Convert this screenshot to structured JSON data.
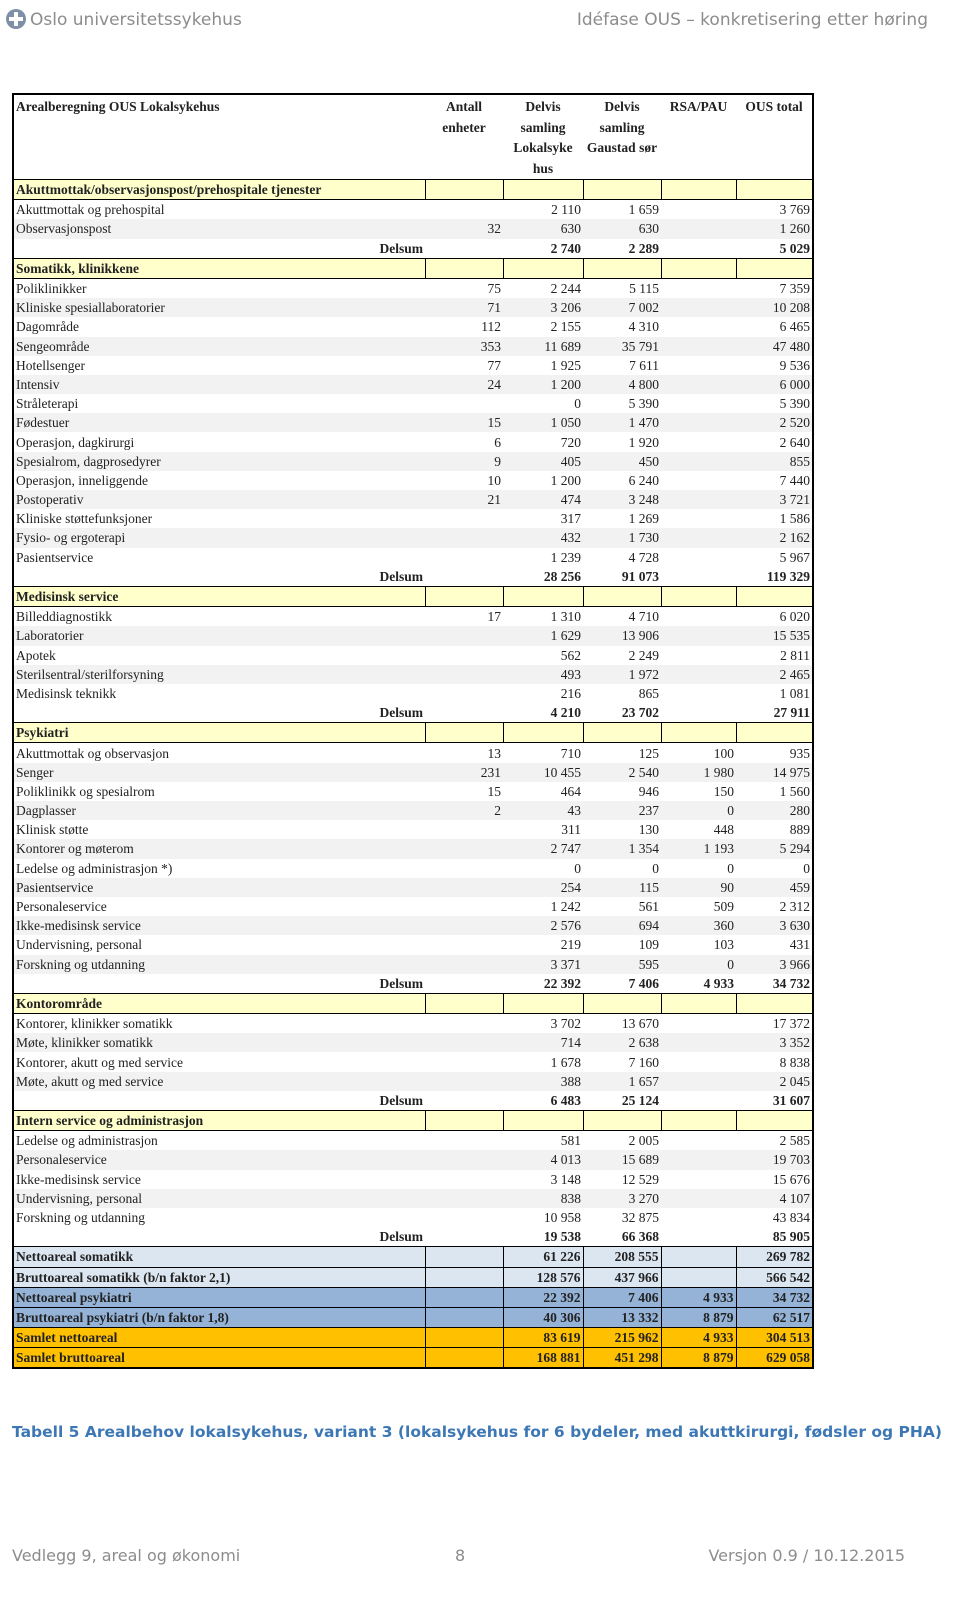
{
  "header": {
    "organization": "Oslo universitetssykehus",
    "document_title": "Idéfase OUS – konkretisering etter høring"
  },
  "table": {
    "header": [
      "Arealberegning OUS Lokalsykehus",
      "Antall enheter",
      "Delvis samling Lokalsyke hus",
      "Delvis samling Gaustad sør",
      "RSA/PAU",
      "OUS total"
    ],
    "sections": [
      {
        "title": "Akuttmottak/observasjonspost/prehospitale tjenester",
        "rows": [
          [
            "Akuttmottak og prehospital",
            null,
            "2 110",
            "1 659",
            null,
            "3 769"
          ],
          [
            "Observasjonspost",
            "32",
            "630",
            "630",
            null,
            "1 260"
          ]
        ],
        "delsum": [
          "Delsum",
          null,
          "2 740",
          "2 289",
          null,
          "5 029"
        ]
      },
      {
        "title": "Somatikk, klinikkene",
        "rows": [
          [
            "Poliklinikker",
            "75",
            "2 244",
            "5 115",
            null,
            "7 359"
          ],
          [
            "Kliniske spesiallaboratorier",
            "71",
            "3 206",
            "7 002",
            null,
            "10 208"
          ],
          [
            "Dagområde",
            "112",
            "2 155",
            "4 310",
            null,
            "6 465"
          ],
          [
            "Sengeområde",
            "353",
            "11 689",
            "35 791",
            null,
            "47 480"
          ],
          [
            "Hotellsenger",
            "77",
            "1 925",
            "7 611",
            null,
            "9 536"
          ],
          [
            "Intensiv",
            "24",
            "1 200",
            "4 800",
            null,
            "6 000"
          ],
          [
            "Stråleterapi",
            null,
            "0",
            "5 390",
            null,
            "5 390"
          ],
          [
            "Fødestuer",
            "15",
            "1 050",
            "1 470",
            null,
            "2 520"
          ],
          [
            "Operasjon, dagkirurgi",
            "6",
            "720",
            "1 920",
            null,
            "2 640"
          ],
          [
            "Spesialrom, dagprosedyrer",
            "9",
            "405",
            "450",
            null,
            "855"
          ],
          [
            "Operasjon, inneliggende",
            "10",
            "1 200",
            "6 240",
            null,
            "7 440"
          ],
          [
            "Postoperativ",
            "21",
            "474",
            "3 248",
            null,
            "3 721"
          ],
          [
            "Kliniske støttefunksjoner",
            null,
            "317",
            "1 269",
            null,
            "1 586"
          ],
          [
            "Fysio- og ergoterapi",
            null,
            "432",
            "1 730",
            null,
            "2 162"
          ],
          [
            "Pasientservice",
            null,
            "1 239",
            "4 728",
            null,
            "5 967"
          ]
        ],
        "delsum": [
          "Delsum",
          null,
          "28 256",
          "91 073",
          null,
          "119 329"
        ]
      },
      {
        "title": "Medisinsk service",
        "rows": [
          [
            "Billeddiagnostikk",
            "17",
            "1 310",
            "4 710",
            null,
            "6 020"
          ],
          [
            "Laboratorier",
            null,
            "1 629",
            "13 906",
            null,
            "15 535"
          ],
          [
            "Apotek",
            null,
            "562",
            "2 249",
            null,
            "2 811"
          ],
          [
            "Sterilsentral/sterilforsyning",
            null,
            "493",
            "1 972",
            null,
            "2 465"
          ],
          [
            "Medisinsk teknikk",
            null,
            "216",
            "865",
            null,
            "1 081"
          ]
        ],
        "delsum": [
          "Delsum",
          null,
          "4 210",
          "23 702",
          null,
          "27 911"
        ]
      },
      {
        "title": "Psykiatri",
        "rows": [
          [
            "Akuttmottak og observasjon",
            "13",
            "710",
            "125",
            "100",
            "935"
          ],
          [
            "Senger",
            "231",
            "10 455",
            "2 540",
            "1 980",
            "14 975"
          ],
          [
            "Poliklinikk og spesialrom",
            "15",
            "464",
            "946",
            "150",
            "1 560"
          ],
          [
            "Dagplasser",
            "2",
            "43",
            "237",
            "0",
            "280"
          ],
          [
            "Klinisk støtte",
            null,
            "311",
            "130",
            "448",
            "889"
          ],
          [
            "Kontorer og møterom",
            null,
            "2 747",
            "1 354",
            "1 193",
            "5 294"
          ],
          [
            "Ledelse og administrasjon *)",
            null,
            "0",
            "0",
            "0",
            "0"
          ],
          [
            "Pasientservice",
            null,
            "254",
            "115",
            "90",
            "459"
          ],
          [
            "Personaleservice",
            null,
            "1 242",
            "561",
            "509",
            "2 312"
          ],
          [
            "Ikke-medisinsk service",
            null,
            "2 576",
            "694",
            "360",
            "3 630"
          ],
          [
            "Undervisning, personal",
            null,
            "219",
            "109",
            "103",
            "431"
          ],
          [
            "Forskning og utdanning",
            null,
            "3 371",
            "595",
            "0",
            "3 966"
          ]
        ],
        "delsum": [
          "Delsum",
          null,
          "22 392",
          "7 406",
          "4 933",
          "34 732"
        ]
      },
      {
        "title": "Kontorområde",
        "rows": [
          [
            "Kontorer, klinikker somatikk",
            null,
            "3 702",
            "13 670",
            null,
            "17 372"
          ],
          [
            "Møte, klinikker somatikk",
            null,
            "714",
            "2 638",
            null,
            "3 352"
          ],
          [
            "Kontorer, akutt og med service",
            null,
            "1 678",
            "7 160",
            null,
            "8 838"
          ],
          [
            "Møte, akutt og med service",
            null,
            "388",
            "1 657",
            null,
            "2 045"
          ]
        ],
        "delsum": [
          "Delsum",
          null,
          "6 483",
          "25 124",
          null,
          "31 607"
        ]
      },
      {
        "title": "Intern service og administrasjon",
        "rows": [
          [
            "Ledelse og administrasjon",
            null,
            "581",
            "2 005",
            null,
            "2 585"
          ],
          [
            "Personaleservice",
            null,
            "4 013",
            "15 689",
            null,
            "19 703"
          ],
          [
            "Ikke-medisinsk service",
            null,
            "3 148",
            "12 529",
            null,
            "15 676"
          ],
          [
            "Undervisning, personal",
            null,
            "838",
            "3 270",
            null,
            "4 107"
          ],
          [
            "Forskning og utdanning",
            null,
            "10 958",
            "32 875",
            null,
            "43 834"
          ]
        ],
        "delsum": [
          "Delsum",
          null,
          "19 538",
          "66 368",
          null,
          "85 905"
        ]
      }
    ],
    "totals": [
      [
        "Nettoareal somatikk",
        null,
        "61 226",
        "208 555",
        null,
        "269 782"
      ],
      [
        "Bruttoareal somatikk (b/n faktor 2,1)",
        null,
        "128 576",
        "437 966",
        null,
        "566 542"
      ],
      [
        "Nettoareal psykiatri",
        null,
        "22 392",
        "7 406",
        "4 933",
        "34 732"
      ],
      [
        "Bruttoareal psykiatri (b/n faktor 1,8)",
        null,
        "40 306",
        "13 332",
        "8 879",
        "62 517"
      ],
      [
        "Samlet nettoareal",
        null,
        "83 619",
        "215 962",
        "4 933",
        "304 513"
      ],
      [
        "Samlet bruttoareal",
        null,
        "168 881",
        "451 298",
        "8 879",
        "629 058"
      ]
    ]
  },
  "caption": "Tabell 5 Arealbehov lokalsykehus, variant 3 (lokalsykehus for 6 bydeler, med akuttkirurgi, fødsler og PHA)",
  "footer": {
    "left": "Vedlegg 9, areal og økonomi",
    "page": "8",
    "version": "Versjon 0.9 / 10.12.2015"
  }
}
